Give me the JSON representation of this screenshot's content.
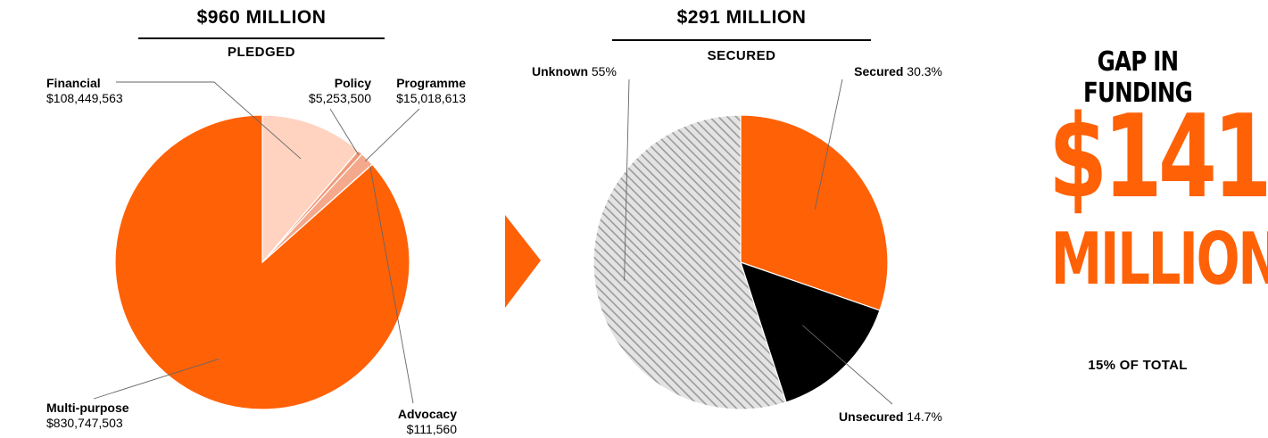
{
  "chart_data": [
    {
      "type": "pie",
      "title": "$960 MILLION",
      "subtitle": "PLEDGED",
      "slices": [
        {
          "name": "Financial",
          "value": 108449563,
          "value_label": "$108,449,563",
          "color": "#ffd3c0"
        },
        {
          "name": "Policy",
          "value": 5253500,
          "value_label": "$5,253,500",
          "color": "#f09a7a"
        },
        {
          "name": "Programme",
          "value": 15018613,
          "value_label": "$15,018,613",
          "color": "#f4a98c"
        },
        {
          "name": "Advocacy",
          "value": 111560,
          "value_label": "$111,560",
          "color": "#ffd3c0"
        },
        {
          "name": "Multi-purpose",
          "value": 830747503,
          "value_label": "$830,747,503",
          "color": "#ff6107"
        }
      ]
    },
    {
      "type": "pie",
      "title": "$291 MILLION",
      "subtitle": "SECURED",
      "slices": [
        {
          "name": "Secured",
          "value": 30.3,
          "value_label": "30.3%",
          "color": "#ff6107"
        },
        {
          "name": "Unsecured",
          "value": 14.7,
          "value_label": "14.7%",
          "color": "#000000"
        },
        {
          "name": "Unknown",
          "value": 55,
          "value_label": "55%",
          "color": "hatch-gray"
        }
      ]
    }
  ],
  "gap": {
    "title": "GAP IN FUNDING",
    "amount": "$141",
    "unit": "MILLION",
    "note": "15% OF TOTAL",
    "color": "#ff6107"
  },
  "arrow": {
    "icon": "arrow-right-icon",
    "color": "#ff6107"
  }
}
